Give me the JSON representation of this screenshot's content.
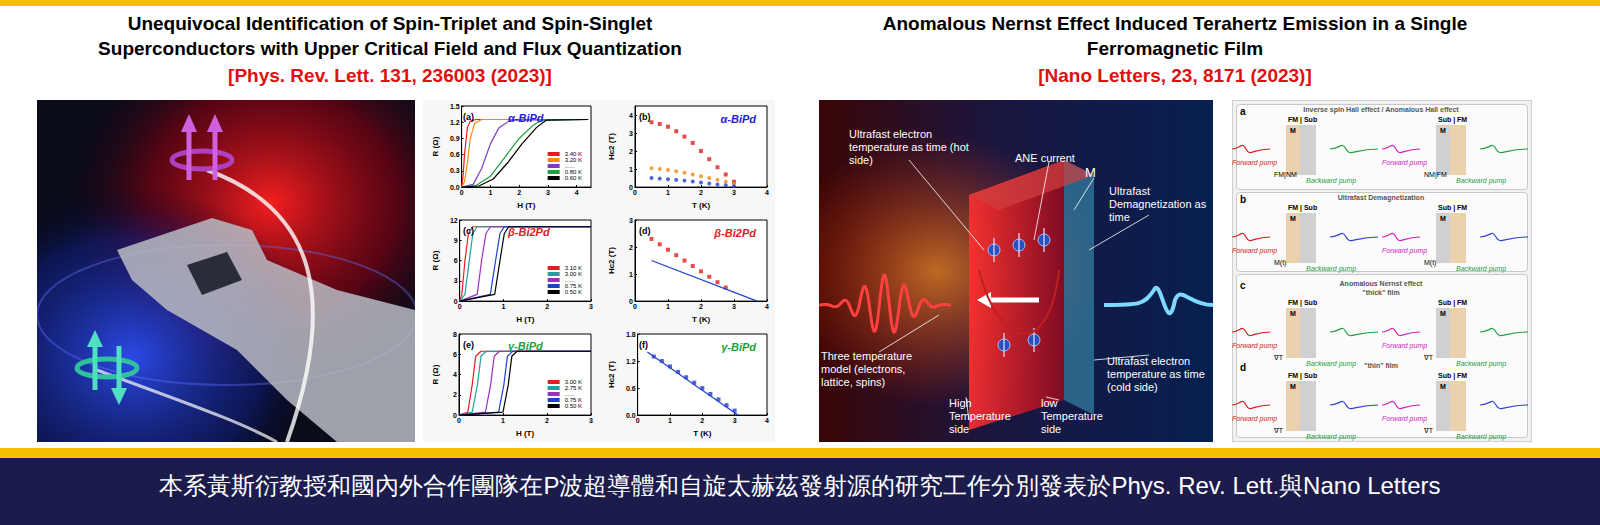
{
  "papers": [
    {
      "title_lines": [
        "Unequivocal Identification of Spin-Triplet and Spin-Singlet",
        "Superconductors with Upper Critical Field and Flux Quantization"
      ],
      "citation": "[Phys. Rev. Lett. 131, 236003 (2023)]"
    },
    {
      "title_lines": [
        "Anomalous Nernst Effect Induced Terahertz Emission in a Single",
        "Ferromagnetic Film"
      ],
      "citation": "[Nano Letters, 23, 8171 (2023)]"
    }
  ],
  "chart_data": [
    {
      "type": "line",
      "panel": "(a)",
      "title": "α-BiPd",
      "color": "#1c22d8",
      "xlabel": "H (T)",
      "ylabel": "R (Ω)",
      "xlim": [
        0,
        4.5
      ],
      "xticks": [
        0,
        1,
        2,
        3,
        4
      ],
      "ylim": [
        0,
        1.5
      ],
      "yticks": [
        {
          "value": 0,
          "label": "0.0"
        },
        0.3,
        0.6,
        0.9,
        1.2,
        1.5
      ],
      "legend": "lower right",
      "series": [
        {
          "name": "3.40 K",
          "color": "#e02020",
          "x": [
            0,
            0.05,
            0.1,
            0.2,
            0.3,
            0.5,
            4.4
          ],
          "values": [
            0,
            0.2,
            0.6,
            1.1,
            1.22,
            1.25,
            1.25
          ]
        },
        {
          "name": "3.20 K",
          "color": "#f08a10",
          "x": [
            0,
            0.1,
            0.2,
            0.3,
            0.45,
            0.7,
            4.4
          ],
          "values": [
            0,
            0.1,
            0.45,
            0.9,
            1.18,
            1.25,
            1.25
          ]
        },
        {
          "name": "......",
          "color": "#7a3fc0",
          "x": [
            0,
            0.4,
            0.7,
            1.0,
            1.3,
            1.7,
            4.4
          ],
          "values": [
            0,
            0.05,
            0.35,
            0.8,
            1.1,
            1.24,
            1.25
          ]
        },
        {
          "name": "0.80 K",
          "color": "#20a040",
          "x": [
            0,
            0.5,
            1.0,
            1.5,
            2.0,
            2.5,
            2.8,
            4.4
          ],
          "values": [
            0,
            0.03,
            0.2,
            0.55,
            0.9,
            1.15,
            1.24,
            1.25
          ]
        },
        {
          "name": "0.60 K",
          "color": "#000000",
          "x": [
            0,
            0.6,
            1.1,
            1.6,
            2.1,
            2.6,
            2.95,
            4.4
          ],
          "values": [
            0,
            0.02,
            0.15,
            0.45,
            0.8,
            1.1,
            1.24,
            1.25
          ]
        }
      ]
    },
    {
      "type": "scatter",
      "panel": "(b)",
      "title": "α-BiPd",
      "color": "#1c22d8",
      "xlabel": "T (K)",
      "ylabel": "Hc2 (T)",
      "xlim": [
        0,
        4
      ],
      "xticks": [
        0,
        1,
        2,
        3,
        4
      ],
      "ylim": [
        0,
        4.5
      ],
      "yticks": [
        0,
        1,
        2,
        3,
        4
      ],
      "series": [
        {
          "color": "#e02020",
          "marker": "square",
          "x": [
            0.5,
            0.75,
            1,
            1.25,
            1.5,
            1.75,
            2,
            2.25,
            2.5,
            2.75,
            3.0
          ],
          "values": [
            3.6,
            3.5,
            3.35,
            3.1,
            2.8,
            2.45,
            2.0,
            1.55,
            1.1,
            0.7,
            0.3
          ]
        },
        {
          "color": "#f08a10",
          "marker": "circle",
          "x": [
            0.5,
            0.75,
            1,
            1.25,
            1.5,
            1.75,
            2,
            2.25,
            2.5,
            2.75,
            3.0
          ],
          "values": [
            1.05,
            1.0,
            0.95,
            0.88,
            0.8,
            0.7,
            0.6,
            0.5,
            0.4,
            0.3,
            0.18
          ]
        },
        {
          "color": "#2040d0",
          "marker": "circle",
          "x": [
            0.5,
            0.75,
            1,
            1.25,
            1.5,
            1.75,
            2,
            2.25,
            2.5,
            2.75,
            3.0
          ],
          "values": [
            0.5,
            0.47,
            0.44,
            0.4,
            0.36,
            0.31,
            0.26,
            0.2,
            0.15,
            0.1,
            0.05
          ]
        }
      ]
    },
    {
      "type": "line",
      "panel": "(c)",
      "title": "β-Bi2Pd",
      "color": "#e02020",
      "xlabel": "H (T)",
      "ylabel": "R (Ω)",
      "xlim": [
        0,
        3
      ],
      "xticks": [
        0,
        1,
        2,
        3
      ],
      "ylim": [
        0,
        12
      ],
      "yticks": [
        0,
        3,
        6,
        9,
        12
      ],
      "legend": "lower right",
      "series": [
        {
          "name": "3.10 K",
          "color": "#e02020",
          "x": [
            0,
            0.05,
            0.12,
            0.2,
            0.3,
            3
          ],
          "values": [
            0,
            1,
            6,
            10,
            11,
            11
          ]
        },
        {
          "name": "3.00 K",
          "color": "#20a0a0",
          "x": [
            0,
            0.12,
            0.22,
            0.3,
            0.4,
            3
          ],
          "values": [
            0,
            1,
            6,
            10,
            11,
            11
          ]
        },
        {
          "name": "......",
          "color": "#9a30c0",
          "x": [
            0,
            0.4,
            0.5,
            0.6,
            0.7,
            3
          ],
          "values": [
            0,
            1,
            6,
            10,
            11,
            11
          ]
        },
        {
          "name": "0.75 K",
          "color": "#2040d0",
          "x": [
            0,
            0.7,
            0.82,
            0.92,
            1.02,
            3
          ],
          "values": [
            0,
            1,
            6,
            10,
            11,
            11
          ]
        },
        {
          "name": "0.50 K",
          "color": "#000000",
          "x": [
            0,
            0.8,
            0.92,
            1.02,
            1.12,
            3
          ],
          "values": [
            0,
            1,
            6,
            10,
            11,
            11
          ]
        }
      ]
    },
    {
      "type": "scatter",
      "panel": "(d)",
      "title": "β-Bi2Pd",
      "color": "#e02020",
      "xlabel": "T (K)",
      "ylabel": "Hc2 (T)",
      "xlim": [
        0,
        4
      ],
      "xticks": [
        0,
        1,
        2,
        3,
        4
      ],
      "ylim": [
        0,
        3
      ],
      "yticks": [
        0,
        1,
        2,
        3
      ],
      "series": [
        {
          "color": "#e02020",
          "marker": "square",
          "x": [
            0.5,
            0.75,
            1,
            1.25,
            1.5,
            1.75,
            2,
            2.25,
            2.5,
            2.75
          ],
          "values": [
            2.3,
            2.1,
            1.9,
            1.7,
            1.5,
            1.3,
            1.1,
            0.9,
            0.7,
            0.5
          ]
        },
        {
          "type": "line",
          "color": "#2040d0",
          "marker": "none",
          "x": [
            0.5,
            3.7
          ],
          "values": [
            1.5,
            0
          ]
        }
      ]
    },
    {
      "type": "line",
      "panel": "(e)",
      "title": "γ-BiPd",
      "color": "#20a040",
      "xlabel": "H (T)",
      "ylabel": "R (Ω)",
      "xlim": [
        0,
        3
      ],
      "xticks": [
        0,
        1,
        2,
        3
      ],
      "ylim": [
        0,
        8
      ],
      "yticks": [
        0,
        2,
        4,
        6,
        8
      ],
      "legend": "lower right",
      "series": [
        {
          "name": "3.00 K",
          "color": "#e02020",
          "x": [
            0,
            0.2,
            0.3,
            0.38,
            0.5,
            3
          ],
          "values": [
            0,
            0.3,
            3,
            5.8,
            6.3,
            6.3
          ]
        },
        {
          "name": "2.75 K",
          "color": "#20a0a0",
          "x": [
            0,
            0.3,
            0.42,
            0.5,
            0.62,
            3
          ],
          "values": [
            0,
            0.3,
            3,
            5.8,
            6.3,
            6.3
          ]
        },
        {
          "name": "......",
          "color": "#9a30c0",
          "x": [
            0,
            0.6,
            0.72,
            0.8,
            0.92,
            3
          ],
          "values": [
            0,
            0.3,
            3,
            5.8,
            6.3,
            6.3
          ]
        },
        {
          "name": "0.75 K",
          "color": "#2040d0",
          "x": [
            0,
            0.9,
            1.02,
            1.1,
            1.22,
            3
          ],
          "values": [
            0,
            0.3,
            3,
            5.8,
            6.3,
            6.3
          ]
        },
        {
          "name": "0.50 K",
          "color": "#000000",
          "x": [
            0,
            1.0,
            1.12,
            1.2,
            1.32,
            3
          ],
          "values": [
            0,
            0.3,
            3,
            5.8,
            6.3,
            6.3
          ]
        }
      ]
    },
    {
      "type": "scatter",
      "panel": "(f)",
      "title": "γ-BiPd",
      "color": "#20a040",
      "xlabel": "T (K)",
      "ylabel": "Hc2 (T)",
      "xlim": [
        0,
        4
      ],
      "xticks": [
        0,
        1,
        2,
        3,
        4
      ],
      "ylim": [
        0,
        1.8
      ],
      "yticks": [
        {
          "value": 0,
          "label": "0.0"
        },
        0.6,
        1.2,
        1.8
      ],
      "series": [
        {
          "color": "#2040d0",
          "marker": "square",
          "x": [
            0.5,
            0.75,
            1,
            1.25,
            1.5,
            1.75,
            2,
            2.25,
            2.5,
            2.75,
            3.0
          ],
          "values": [
            1.3,
            1.2,
            1.08,
            0.96,
            0.84,
            0.72,
            0.6,
            0.47,
            0.35,
            0.22,
            0.1
          ]
        },
        {
          "type": "line",
          "color": "#2040d0",
          "marker": "none",
          "x": [
            0.3,
            3.1
          ],
          "values": [
            1.4,
            0
          ]
        }
      ]
    }
  ],
  "ane_illustration": {
    "labels": [
      "Ultrafast electron temperature as time (hot side)",
      "ANE current",
      "M",
      "Ultrafast Demagnetization as time",
      "Three temperature model (electrons, lattice, spins)",
      "High Temperature side",
      "low Temperature side",
      "Ultrafast electron temperature as time (cold side)"
    ]
  },
  "schematic": {
    "forward": "Forward pump",
    "backward": "Backward pump",
    "magnet": "M",
    "panels": [
      {
        "letter": "a",
        "heading": "Inverse spin Hall effect / Anomalous Hall effect",
        "left_stack": "FM | Sub",
        "right_stack": "Sub | FM",
        "left_note": "FM|NM",
        "right_note": "NM|FM"
      },
      {
        "letter": "b",
        "heading": "Ultrafast Demagnetization",
        "left_stack": "FM | Sub",
        "right_stack": "Sub | FM",
        "left_note": "M(t)",
        "right_note": "M(t)"
      },
      {
        "letter": "c",
        "heading": "Anomalous Nernst effect",
        "subheading": "\"thick\" film",
        "left_stack": "FM | Sub",
        "right_stack": "Sub | FM",
        "left_note": "∇T",
        "right_note": "∇T"
      },
      {
        "letter": "d",
        "subheading": "\"thin\" film",
        "left_stack": "FM | Sub",
        "right_stack": "Sub | FM",
        "left_note": "∇T",
        "right_note": "∇T"
      }
    ]
  },
  "footer": "本系黃斯衍教授和國內外合作團隊在P波超導體和自旋太赫茲發射源的研究工作分別發表於Phys. Rev. Lett.與Nano Letters"
}
